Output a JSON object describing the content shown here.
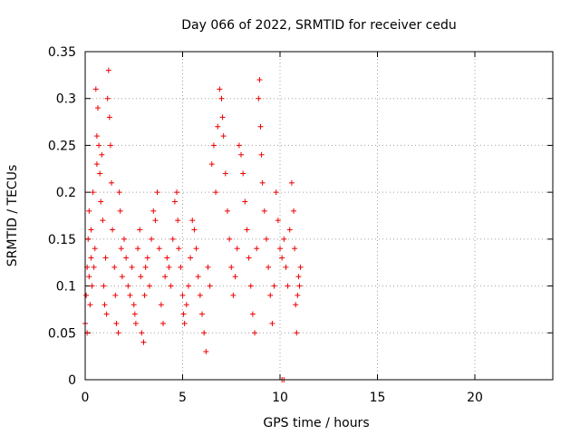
{
  "chart_data": {
    "type": "scatter",
    "title": "Day 066 of 2022, SRMTID for receiver cedu",
    "xlabel": "GPS time / hours",
    "ylabel": "SRMTID / TECUs",
    "xlim": [
      0,
      24
    ],
    "ylim": [
      0,
      0.35
    ],
    "xticks": [
      0,
      5,
      10,
      15,
      20
    ],
    "xtick_labels": [
      "0",
      "5",
      "10",
      "15",
      "20"
    ],
    "yticks": [
      0,
      0.05,
      0.1,
      0.15,
      0.2,
      0.25,
      0.3,
      0.35
    ],
    "ytick_labels": [
      "0",
      "0.05",
      "0.1",
      "0.15",
      "0.2",
      "0.25",
      "0.3",
      "0.35"
    ],
    "grid": true,
    "marker": "plus",
    "series_color": "#ee0000",
    "series": [
      {
        "name": "SRMTID",
        "points": [
          [
            0.0,
            0.06
          ],
          [
            0.05,
            0.09
          ],
          [
            0.1,
            0.12
          ],
          [
            0.1,
            0.05
          ],
          [
            0.15,
            0.15
          ],
          [
            0.2,
            0.11
          ],
          [
            0.2,
            0.18
          ],
          [
            0.25,
            0.08
          ],
          [
            0.3,
            0.13
          ],
          [
            0.3,
            0.16
          ],
          [
            0.35,
            0.1
          ],
          [
            0.4,
            0.2
          ],
          [
            0.45,
            0.12
          ],
          [
            0.5,
            0.14
          ],
          [
            0.55,
            0.31
          ],
          [
            0.6,
            0.26
          ],
          [
            0.6,
            0.23
          ],
          [
            0.65,
            0.29
          ],
          [
            0.7,
            0.25
          ],
          [
            0.75,
            0.22
          ],
          [
            0.8,
            0.19
          ],
          [
            0.85,
            0.24
          ],
          [
            0.9,
            0.17
          ],
          [
            0.95,
            0.1
          ],
          [
            1.0,
            0.08
          ],
          [
            1.05,
            0.13
          ],
          [
            1.1,
            0.07
          ],
          [
            1.15,
            0.3
          ],
          [
            1.2,
            0.33
          ],
          [
            1.25,
            0.28
          ],
          [
            1.3,
            0.25
          ],
          [
            1.35,
            0.21
          ],
          [
            1.4,
            0.16
          ],
          [
            1.5,
            0.12
          ],
          [
            1.55,
            0.09
          ],
          [
            1.6,
            0.06
          ],
          [
            1.7,
            0.05
          ],
          [
            1.75,
            0.2
          ],
          [
            1.8,
            0.18
          ],
          [
            1.85,
            0.14
          ],
          [
            1.9,
            0.11
          ],
          [
            2.0,
            0.15
          ],
          [
            2.1,
            0.13
          ],
          [
            2.2,
            0.1
          ],
          [
            2.3,
            0.09
          ],
          [
            2.4,
            0.12
          ],
          [
            2.5,
            0.08
          ],
          [
            2.55,
            0.07
          ],
          [
            2.6,
            0.06
          ],
          [
            2.7,
            0.14
          ],
          [
            2.8,
            0.16
          ],
          [
            2.85,
            0.11
          ],
          [
            2.9,
            0.05
          ],
          [
            3.0,
            0.04
          ],
          [
            3.05,
            0.09
          ],
          [
            3.1,
            0.12
          ],
          [
            3.2,
            0.13
          ],
          [
            3.3,
            0.1
          ],
          [
            3.4,
            0.15
          ],
          [
            3.5,
            0.18
          ],
          [
            3.6,
            0.17
          ],
          [
            3.7,
            0.2
          ],
          [
            3.8,
            0.14
          ],
          [
            3.9,
            0.08
          ],
          [
            4.0,
            0.06
          ],
          [
            4.1,
            0.11
          ],
          [
            4.2,
            0.13
          ],
          [
            4.3,
            0.12
          ],
          [
            4.4,
            0.1
          ],
          [
            4.5,
            0.15
          ],
          [
            4.6,
            0.19
          ],
          [
            4.7,
            0.2
          ],
          [
            4.75,
            0.17
          ],
          [
            4.8,
            0.14
          ],
          [
            4.9,
            0.12
          ],
          [
            5.0,
            0.09
          ],
          [
            5.05,
            0.07
          ],
          [
            5.1,
            0.06
          ],
          [
            5.2,
            0.08
          ],
          [
            5.3,
            0.1
          ],
          [
            5.4,
            0.13
          ],
          [
            5.5,
            0.17
          ],
          [
            5.6,
            0.16
          ],
          [
            5.7,
            0.14
          ],
          [
            5.8,
            0.11
          ],
          [
            5.9,
            0.09
          ],
          [
            6.0,
            0.07
          ],
          [
            6.1,
            0.05
          ],
          [
            6.2,
            0.03
          ],
          [
            6.3,
            0.12
          ],
          [
            6.4,
            0.1
          ],
          [
            6.5,
            0.23
          ],
          [
            6.6,
            0.25
          ],
          [
            6.7,
            0.2
          ],
          [
            6.8,
            0.27
          ],
          [
            6.9,
            0.31
          ],
          [
            7.0,
            0.3
          ],
          [
            7.05,
            0.28
          ],
          [
            7.1,
            0.26
          ],
          [
            7.2,
            0.22
          ],
          [
            7.3,
            0.18
          ],
          [
            7.4,
            0.15
          ],
          [
            7.5,
            0.12
          ],
          [
            7.6,
            0.09
          ],
          [
            7.7,
            0.11
          ],
          [
            7.8,
            0.14
          ],
          [
            7.9,
            0.25
          ],
          [
            8.0,
            0.24
          ],
          [
            8.1,
            0.22
          ],
          [
            8.2,
            0.19
          ],
          [
            8.3,
            0.16
          ],
          [
            8.4,
            0.13
          ],
          [
            8.5,
            0.1
          ],
          [
            8.6,
            0.07
          ],
          [
            8.7,
            0.05
          ],
          [
            8.8,
            0.14
          ],
          [
            8.9,
            0.3
          ],
          [
            8.95,
            0.32
          ],
          [
            9.0,
            0.27
          ],
          [
            9.05,
            0.24
          ],
          [
            9.1,
            0.21
          ],
          [
            9.2,
            0.18
          ],
          [
            9.3,
            0.15
          ],
          [
            9.4,
            0.12
          ],
          [
            9.5,
            0.09
          ],
          [
            9.6,
            0.06
          ],
          [
            9.7,
            0.1
          ],
          [
            9.8,
            0.2
          ],
          [
            9.9,
            0.17
          ],
          [
            10.0,
            0.14
          ],
          [
            10.1,
            0.13
          ],
          [
            10.2,
            0.15
          ],
          [
            10.3,
            0.12
          ],
          [
            10.4,
            0.1
          ],
          [
            10.5,
            0.16
          ],
          [
            10.6,
            0.21
          ],
          [
            10.7,
            0.18
          ],
          [
            10.75,
            0.14
          ],
          [
            10.8,
            0.08
          ],
          [
            10.85,
            0.05
          ],
          [
            10.9,
            0.09
          ],
          [
            10.95,
            0.11
          ],
          [
            11.0,
            0.1
          ],
          [
            11.05,
            0.12
          ],
          [
            10.1,
            0.0
          ],
          [
            10.2,
            0.0
          ]
        ]
      }
    ]
  }
}
